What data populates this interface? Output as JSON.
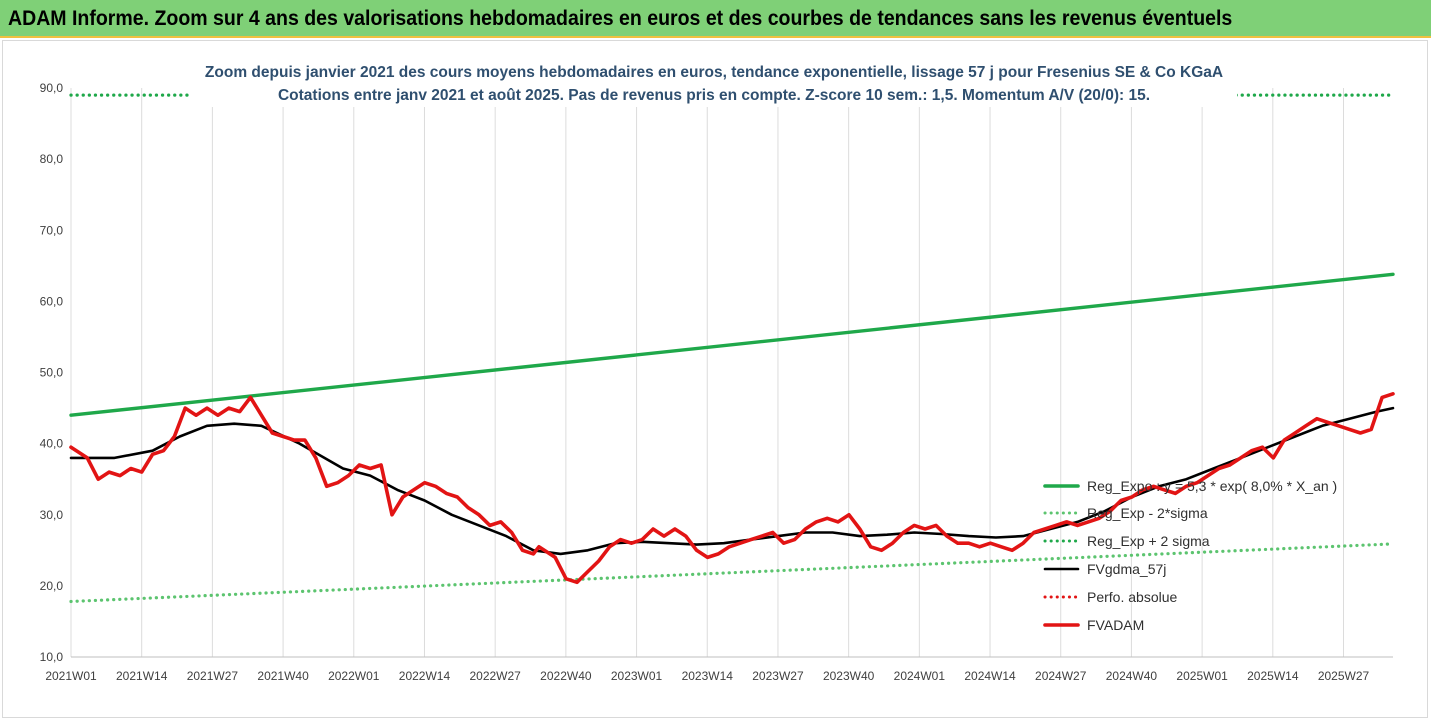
{
  "banner": {
    "title": "ADAM Informe. Zoom sur 4 ans des valorisations hebdomadaires en euros et des courbes de tendances sans les revenus éventuels"
  },
  "chart_data": {
    "type": "line",
    "title": "Zoom depuis janvier 2021 des cours moyens hebdomadaires en euros, tendance exponentielle, lissage 57 j pour Fresenius SE & Co KGaA",
    "subtitle": "Cotations entre janv 2021 et août 2025. Pas de revenus pris en compte. Z-score 10 sem.: 1,5. Momentum A/V (20/0): 15.",
    "ylim": [
      10,
      90
    ],
    "y_ticks": [
      "10,0",
      "20,0",
      "30,0",
      "40,0",
      "50,0",
      "60,0",
      "70,0",
      "80,0",
      "90,0"
    ],
    "x_ticks": [
      "2021W01",
      "2021W14",
      "2021W27",
      "2021W40",
      "2022W01",
      "2022W14",
      "2022W27",
      "2022W40",
      "2023W01",
      "2023W14",
      "2023W27",
      "2023W40",
      "2024W01",
      "2024W14",
      "2024W27",
      "2024W40",
      "2025W01",
      "2025W14",
      "2025W27"
    ],
    "x_range_weeks": [
      0,
      243
    ],
    "grid": "vertical",
    "legend_position": "right",
    "series": [
      {
        "name": "Reg_Expo : y = 5,3 * exp( 8,0% *  X_an )",
        "color": "#1fa84a",
        "style": "solid",
        "x": [
          0,
          243
        ],
        "y": [
          44.0,
          63.8
        ]
      },
      {
        "name": "Reg_Exp - 2*sigma",
        "color": "#5cc46f",
        "style": "dotted",
        "x": [
          0,
          243
        ],
        "y": [
          17.8,
          25.9
        ]
      },
      {
        "name": "Reg_Exp + 2 sigma",
        "color": "#1fa84a",
        "style": "dotted",
        "x": [
          0,
          243
        ],
        "y": [
          89.0,
          89.0
        ]
      },
      {
        "name": "FVgdma_57j",
        "color": "#000000",
        "style": "solid",
        "x": [
          0,
          8,
          15,
          20,
          25,
          30,
          35,
          42,
          50,
          55,
          60,
          65,
          70,
          75,
          80,
          85,
          90,
          95,
          100,
          105,
          110,
          115,
          120,
          125,
          130,
          135,
          140,
          145,
          150,
          155,
          160,
          165,
          170,
          175,
          180,
          185,
          190,
          195,
          200,
          205,
          210,
          215,
          220,
          225,
          230,
          235,
          240,
          243
        ],
        "y": [
          38.0,
          38.0,
          39.0,
          41.0,
          42.5,
          42.8,
          42.5,
          40.0,
          36.5,
          35.5,
          33.5,
          32.0,
          30.0,
          28.5,
          27.0,
          25.0,
          24.5,
          25.0,
          26.0,
          26.2,
          26.0,
          25.8,
          26.0,
          26.5,
          27.0,
          27.5,
          27.5,
          27.0,
          27.2,
          27.5,
          27.3,
          27.0,
          26.8,
          27.0,
          28.0,
          29.0,
          30.5,
          32.5,
          34.0,
          35.0,
          36.5,
          38.0,
          39.5,
          41.0,
          42.5,
          43.5,
          44.5,
          45.0
        ]
      },
      {
        "name": "Perfo. absolue",
        "color": "#e21414",
        "style": "dotted",
        "x": [],
        "y": []
      },
      {
        "name": "FVADAM",
        "color": "#e21414",
        "style": "solid",
        "x": [
          0,
          3,
          5,
          7,
          9,
          11,
          13,
          15,
          17,
          19,
          21,
          23,
          25,
          27,
          29,
          31,
          33,
          35,
          37,
          39,
          41,
          43,
          45,
          47,
          49,
          51,
          53,
          55,
          57,
          59,
          61,
          63,
          65,
          67,
          69,
          71,
          73,
          75,
          77,
          79,
          81,
          83,
          85,
          86,
          87,
          89,
          91,
          93,
          95,
          97,
          99,
          101,
          103,
          105,
          107,
          109,
          111,
          113,
          115,
          117,
          119,
          121,
          123,
          125,
          127,
          129,
          131,
          133,
          135,
          137,
          139,
          141,
          143,
          145,
          147,
          149,
          151,
          153,
          155,
          157,
          159,
          161,
          163,
          165,
          167,
          169,
          171,
          173,
          175,
          177,
          179,
          181,
          183,
          185,
          187,
          189,
          191,
          193,
          195,
          197,
          199,
          201,
          203,
          205,
          207,
          209,
          211,
          213,
          215,
          217,
          219,
          221,
          223,
          225,
          227,
          229,
          231,
          233,
          235,
          237,
          239,
          241,
          243
        ],
        "y": [
          39.5,
          38.0,
          35.0,
          36.0,
          35.5,
          36.5,
          36.0,
          38.5,
          39.0,
          41.0,
          45.0,
          44.0,
          45.0,
          44.0,
          45.0,
          44.5,
          46.5,
          44.0,
          41.5,
          41.0,
          40.5,
          40.5,
          38.0,
          34.0,
          34.5,
          35.5,
          37.0,
          36.5,
          37.0,
          30.0,
          32.5,
          33.5,
          34.5,
          34.0,
          33.0,
          32.5,
          31.0,
          30.0,
          28.5,
          29.0,
          27.5,
          25.0,
          24.5,
          25.5,
          25.0,
          24.0,
          21.0,
          20.5,
          22.0,
          23.5,
          25.5,
          26.5,
          26.0,
          26.5,
          28.0,
          27.0,
          28.0,
          27.0,
          25.0,
          24.0,
          24.5,
          25.5,
          26.0,
          26.5,
          27.0,
          27.5,
          26.0,
          26.5,
          28.0,
          29.0,
          29.5,
          29.0,
          30.0,
          28.0,
          25.5,
          25.0,
          26.0,
          27.5,
          28.5,
          28.0,
          28.5,
          27.0,
          26.0,
          26.0,
          25.5,
          26.0,
          25.5,
          25.0,
          26.0,
          27.5,
          28.0,
          28.5,
          29.0,
          28.5,
          29.0,
          29.5,
          30.5,
          32.0,
          32.5,
          33.5,
          34.0,
          33.5,
          33.0,
          34.0,
          34.5,
          35.5,
          36.5,
          37.0,
          38.0,
          39.0,
          39.5,
          38.0,
          40.5,
          41.5,
          42.5,
          43.5,
          43.0,
          42.5,
          42.0,
          41.5,
          42.0,
          46.5,
          47.0
        ]
      }
    ]
  }
}
